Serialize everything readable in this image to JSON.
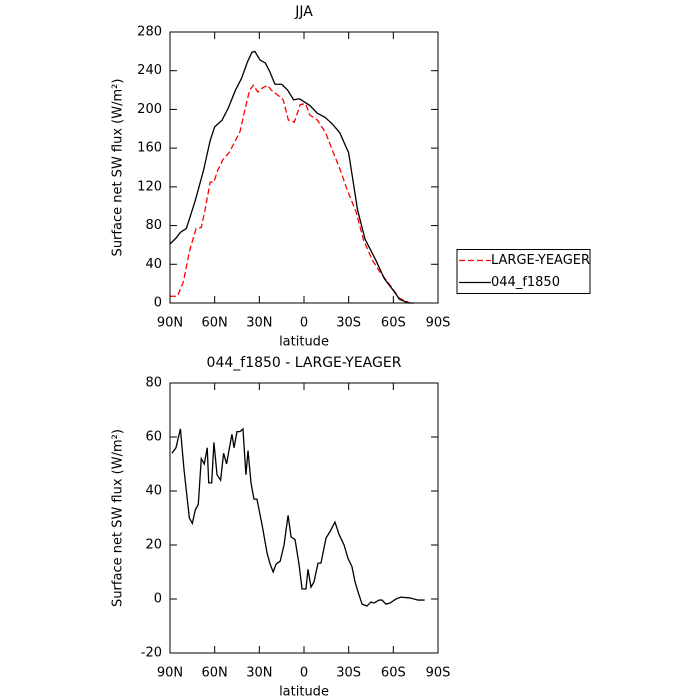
{
  "chart_data": [
    {
      "type": "line",
      "title": "JJA",
      "xlabel": "latitude",
      "ylabel": "Surface net SW flux (W/m²)",
      "xlim": [
        90,
        -90
      ],
      "ylim": [
        0,
        280
      ],
      "xticks": [
        {
          "value": 90,
          "label": "90N"
        },
        {
          "value": 60,
          "label": "60N"
        },
        {
          "value": 30,
          "label": "30N"
        },
        0,
        {
          "value": -30,
          "label": "30S"
        },
        {
          "value": -60,
          "label": "60S"
        },
        {
          "value": -90,
          "label": "90S"
        }
      ],
      "yticks": [
        0,
        40,
        80,
        120,
        160,
        200,
        240,
        280
      ],
      "legend": "right",
      "series": [
        {
          "name": "LARGE-YEAGER",
          "color": "#ff0000",
          "style": "dashed",
          "x": [
            90,
            85,
            81,
            77,
            72.5,
            69,
            66.5,
            63,
            60.5,
            58,
            54.5,
            50,
            46,
            43,
            39.5,
            36.5,
            34,
            31,
            28,
            24.5,
            22,
            17,
            14,
            10.5,
            6.5,
            2.5,
            -1,
            -4,
            -9,
            -14.5,
            -19,
            -24,
            -29,
            -35,
            -40,
            -46,
            -51,
            -58,
            -64,
            -71
          ],
          "values": [
            7,
            7,
            22,
            53,
            77,
            78,
            96,
            125,
            125,
            137,
            148,
            156,
            168,
            177,
            201,
            220,
            225,
            218,
            222,
            225,
            220,
            214,
            210,
            189,
            187,
            205,
            206,
            194,
            189,
            176,
            158,
            139,
            117,
            94,
            65,
            44,
            32,
            18,
            5,
            0
          ]
        },
        {
          "name": "044_f1850",
          "color": "#000000",
          "style": "solid",
          "x": [
            90,
            86,
            83,
            79,
            73,
            67.5,
            63,
            60,
            55,
            51,
            46,
            42,
            38,
            35,
            33,
            29.5,
            26,
            23,
            19.5,
            15,
            11,
            7,
            3,
            0,
            -4,
            -9,
            -14,
            -19,
            -24,
            -30,
            -36,
            -41,
            -48,
            -54,
            -60,
            -64,
            -70,
            -74
          ],
          "values": [
            61,
            67,
            73,
            77,
            106,
            137,
            168,
            182,
            189,
            201,
            220,
            232,
            249,
            259,
            260,
            251,
            248,
            239,
            226,
            226,
            220,
            210,
            211,
            208,
            204,
            196,
            192,
            185,
            176,
            155,
            96,
            66,
            45,
            25,
            13,
            4,
            0,
            0
          ]
        }
      ]
    },
    {
      "type": "line",
      "title": "044_f1850 - LARGE-YEAGER",
      "xlabel": "latitude",
      "ylabel": "Surface net SW flux (W/m²)",
      "xlim": [
        90,
        -90
      ],
      "ylim": [
        -20,
        80
      ],
      "xticks": [
        {
          "value": 90,
          "label": "90N"
        },
        {
          "value": 60,
          "label": "60N"
        },
        {
          "value": 30,
          "label": "30N"
        },
        0,
        {
          "value": -30,
          "label": "30S"
        },
        {
          "value": -60,
          "label": "60S"
        },
        {
          "value": -90,
          "label": "90S"
        }
      ],
      "yticks": [
        -20,
        0,
        20,
        40,
        60,
        80
      ],
      "series": [
        {
          "color": "#000000",
          "style": "solid",
          "x": [
            88.7,
            86,
            83,
            80.6,
            77,
            75,
            73,
            71,
            69,
            67,
            65,
            64,
            62,
            60.5,
            58.4,
            56,
            54,
            52,
            50.4,
            48.4,
            47,
            45,
            43,
            41,
            39,
            37.6,
            35.6,
            33.6,
            31.6,
            28,
            24.8,
            22.8,
            20.7,
            18.7,
            16,
            13.4,
            10.7,
            8.7,
            6,
            3.4,
            1.3,
            -1.3,
            -2.7,
            -4.7,
            -6.7,
            -9.4,
            -11.4,
            -14.8,
            -17.5,
            -20.8,
            -23.5,
            -26.9,
            -29.6,
            -32.2,
            -34.3,
            -36.3,
            -39,
            -42.3,
            -45,
            -47,
            -50.4,
            -52.4,
            -55,
            -57.8,
            -61.8,
            -65,
            -71,
            -76.7,
            -81
          ],
          "values": [
            54,
            56,
            63,
            48,
            30,
            28,
            33,
            35,
            52,
            50,
            56,
            43,
            43,
            58,
            46,
            44,
            54,
            50,
            55,
            61,
            56,
            62,
            62,
            63,
            46,
            55,
            43,
            37,
            37,
            27,
            17,
            13,
            10,
            13,
            14,
            20,
            31,
            23,
            22,
            13,
            3.7,
            3.7,
            11,
            4.4,
            6.3,
            13.3,
            13.3,
            22.6,
            25,
            28.5,
            24,
            20,
            15,
            12,
            6.3,
            2.6,
            -1.9,
            -2.6,
            -1.1,
            -1.5,
            -0.4,
            -0.4,
            -1.9,
            -1.5,
            0,
            0.7,
            0.4,
            -0.4,
            -0.4
          ]
        }
      ]
    }
  ]
}
